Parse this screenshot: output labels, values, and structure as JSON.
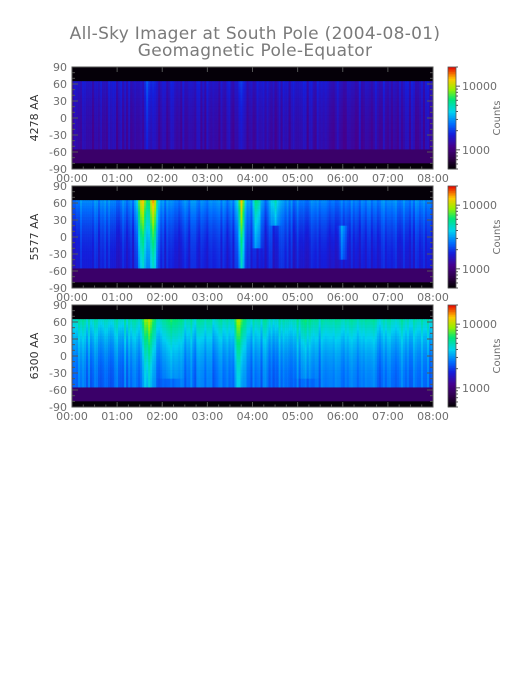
{
  "chart_data": {
    "type": "heatmap",
    "title": "All-Sky Imager at South Pole (2004-08-01)",
    "subtitle": "Geomagnetic Pole-Equator",
    "x_tick_labels": [
      "00:00",
      "01:00",
      "02:00",
      "03:00",
      "04:00",
      "05:00",
      "06:00",
      "07:00",
      "08:00"
    ],
    "xlim_hours": [
      0,
      8
    ],
    "y_tick_labels": [
      "90",
      "60",
      "30",
      "0",
      "-30",
      "-60",
      "-90"
    ],
    "ylim": [
      -90,
      90
    ],
    "colorbar": {
      "label": "Counts",
      "scale": "log",
      "colormap": "rainbow (black-purple-blue-cyan-green-yellow-red)"
    },
    "panels": [
      {
        "ylabel": "4278 AA",
        "colorbar_ticks": [
          "10000",
          "1000"
        ],
        "colorbar_tick_values": [
          10000,
          1000
        ],
        "colorbar_range": [
          500,
          20000
        ],
        "data_band_latitude": [
          -55,
          65
        ],
        "data_band_base_intensity": 0.26,
        "poleward_gradient": 0.05,
        "events": [
          {
            "time_hour": 1.7,
            "width": 0.1,
            "intensity": 0.08,
            "extent_latitude": [
              -55,
              65
            ]
          },
          {
            "time_hour": 3.75,
            "width": 0.08,
            "intensity": 0.05,
            "extent_latitude": [
              -55,
              65
            ]
          }
        ]
      },
      {
        "ylabel": "5577 AA",
        "colorbar_ticks": [
          "10000",
          "1000"
        ],
        "colorbar_tick_values": [
          10000,
          1000
        ],
        "colorbar_range": [
          500,
          20000
        ],
        "data_band_latitude": [
          -55,
          65
        ],
        "data_band_base_intensity": 0.33,
        "poleward_gradient": 0.14,
        "events": [
          {
            "time_hour": 1.55,
            "width": 0.1,
            "intensity": 0.42,
            "extent_latitude": [
              -55,
              65
            ]
          },
          {
            "time_hour": 1.8,
            "width": 0.1,
            "intensity": 0.45,
            "extent_latitude": [
              -55,
              65
            ]
          },
          {
            "time_hour": 3.75,
            "width": 0.08,
            "intensity": 0.38,
            "extent_latitude": [
              -55,
              65
            ]
          },
          {
            "time_hour": 4.1,
            "width": 0.08,
            "intensity": 0.22,
            "extent_latitude": [
              -20,
              65
            ]
          },
          {
            "time_hour": 4.5,
            "width": 0.08,
            "intensity": 0.18,
            "extent_latitude": [
              20,
              65
            ]
          },
          {
            "time_hour": 6.0,
            "width": 0.07,
            "intensity": 0.16,
            "extent_latitude": [
              -40,
              20
            ]
          }
        ]
      },
      {
        "ylabel": "6300 AA",
        "colorbar_ticks": [
          "10000",
          "1000"
        ],
        "colorbar_tick_values": [
          10000,
          1000
        ],
        "colorbar_range": [
          500,
          20000
        ],
        "data_band_latitude": [
          -55,
          65
        ],
        "data_band_base_intensity": 0.44,
        "poleward_gradient": 0.18,
        "events": [
          {
            "time_hour": 1.7,
            "width": 0.12,
            "intensity": 0.2,
            "extent_latitude": [
              -55,
              65
            ]
          },
          {
            "time_hour": 3.7,
            "width": 0.1,
            "intensity": 0.18,
            "extent_latitude": [
              -55,
              65
            ]
          },
          {
            "time_hour": 2.2,
            "width": 0.2,
            "intensity": 0.08,
            "extent_latitude": [
              -40,
              65
            ]
          },
          {
            "time_hour": 5.2,
            "width": 0.2,
            "intensity": 0.06,
            "extent_latitude": [
              -40,
              65
            ]
          }
        ]
      }
    ]
  }
}
